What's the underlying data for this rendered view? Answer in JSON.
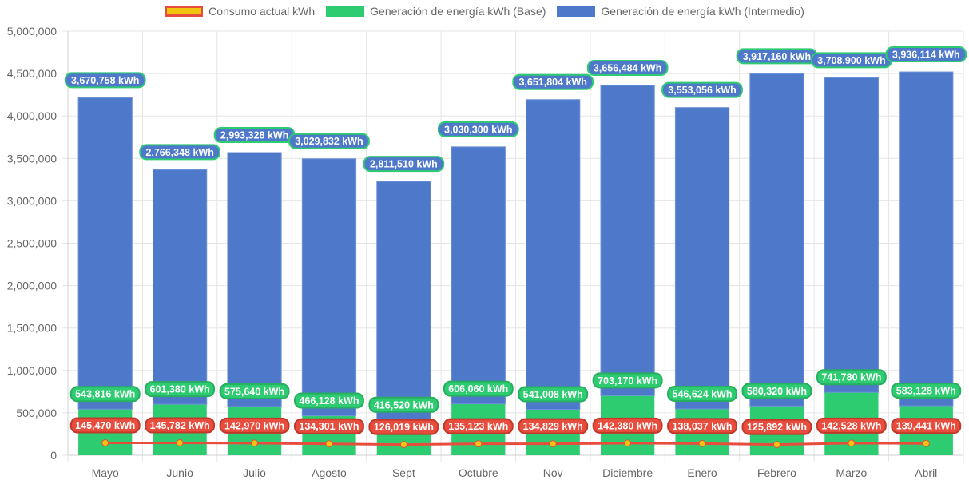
{
  "chart_data": {
    "type": "bar",
    "stacked": true,
    "title": "",
    "xlabel": "",
    "ylabel": "",
    "ylim": [
      0,
      5000000
    ],
    "y_ticks": [
      "0",
      "500,000",
      "1,000,000",
      "1,500,000",
      "2,000,000",
      "2,500,000",
      "3,000,000",
      "3,500,000",
      "4,000,000",
      "4,500,000",
      "5,000,000"
    ],
    "y_tick_values": [
      0,
      500000,
      1000000,
      1500000,
      2000000,
      2500000,
      3000000,
      3500000,
      4000000,
      4500000,
      5000000
    ],
    "grid": true,
    "legend_position": "top",
    "categories": [
      "Mayo",
      "Junio",
      "Julio",
      "Agosto",
      "Sept",
      "Octubre",
      "Nov",
      "Diciembre",
      "Enero",
      "Febrero",
      "Marzo",
      "Abril"
    ],
    "data_label_unit": "kWh",
    "series": [
      {
        "name": "Consumo actual kWh",
        "type": "line",
        "color": "#e74c3c",
        "point_color": "#f1c40f",
        "values": [
          145470,
          145782,
          142970,
          134301,
          126019,
          135123,
          134829,
          142380,
          138037,
          125892,
          142528,
          139441
        ]
      },
      {
        "name": "Generación de energía kWh (Base)",
        "type": "bar",
        "color": "#2ecc71",
        "values": [
          543816,
          601380,
          575640,
          466128,
          416520,
          606060,
          541008,
          703170,
          546624,
          580320,
          741780,
          583128
        ]
      },
      {
        "name": "Generación de energía kWh (Intermedio)",
        "type": "bar",
        "color": "#4e78c9",
        "values": [
          3670758,
          2766348,
          2993328,
          3029832,
          2811510,
          3030300,
          3651804,
          3656484,
          3553056,
          3917160,
          3708900,
          3936114
        ]
      }
    ]
  }
}
